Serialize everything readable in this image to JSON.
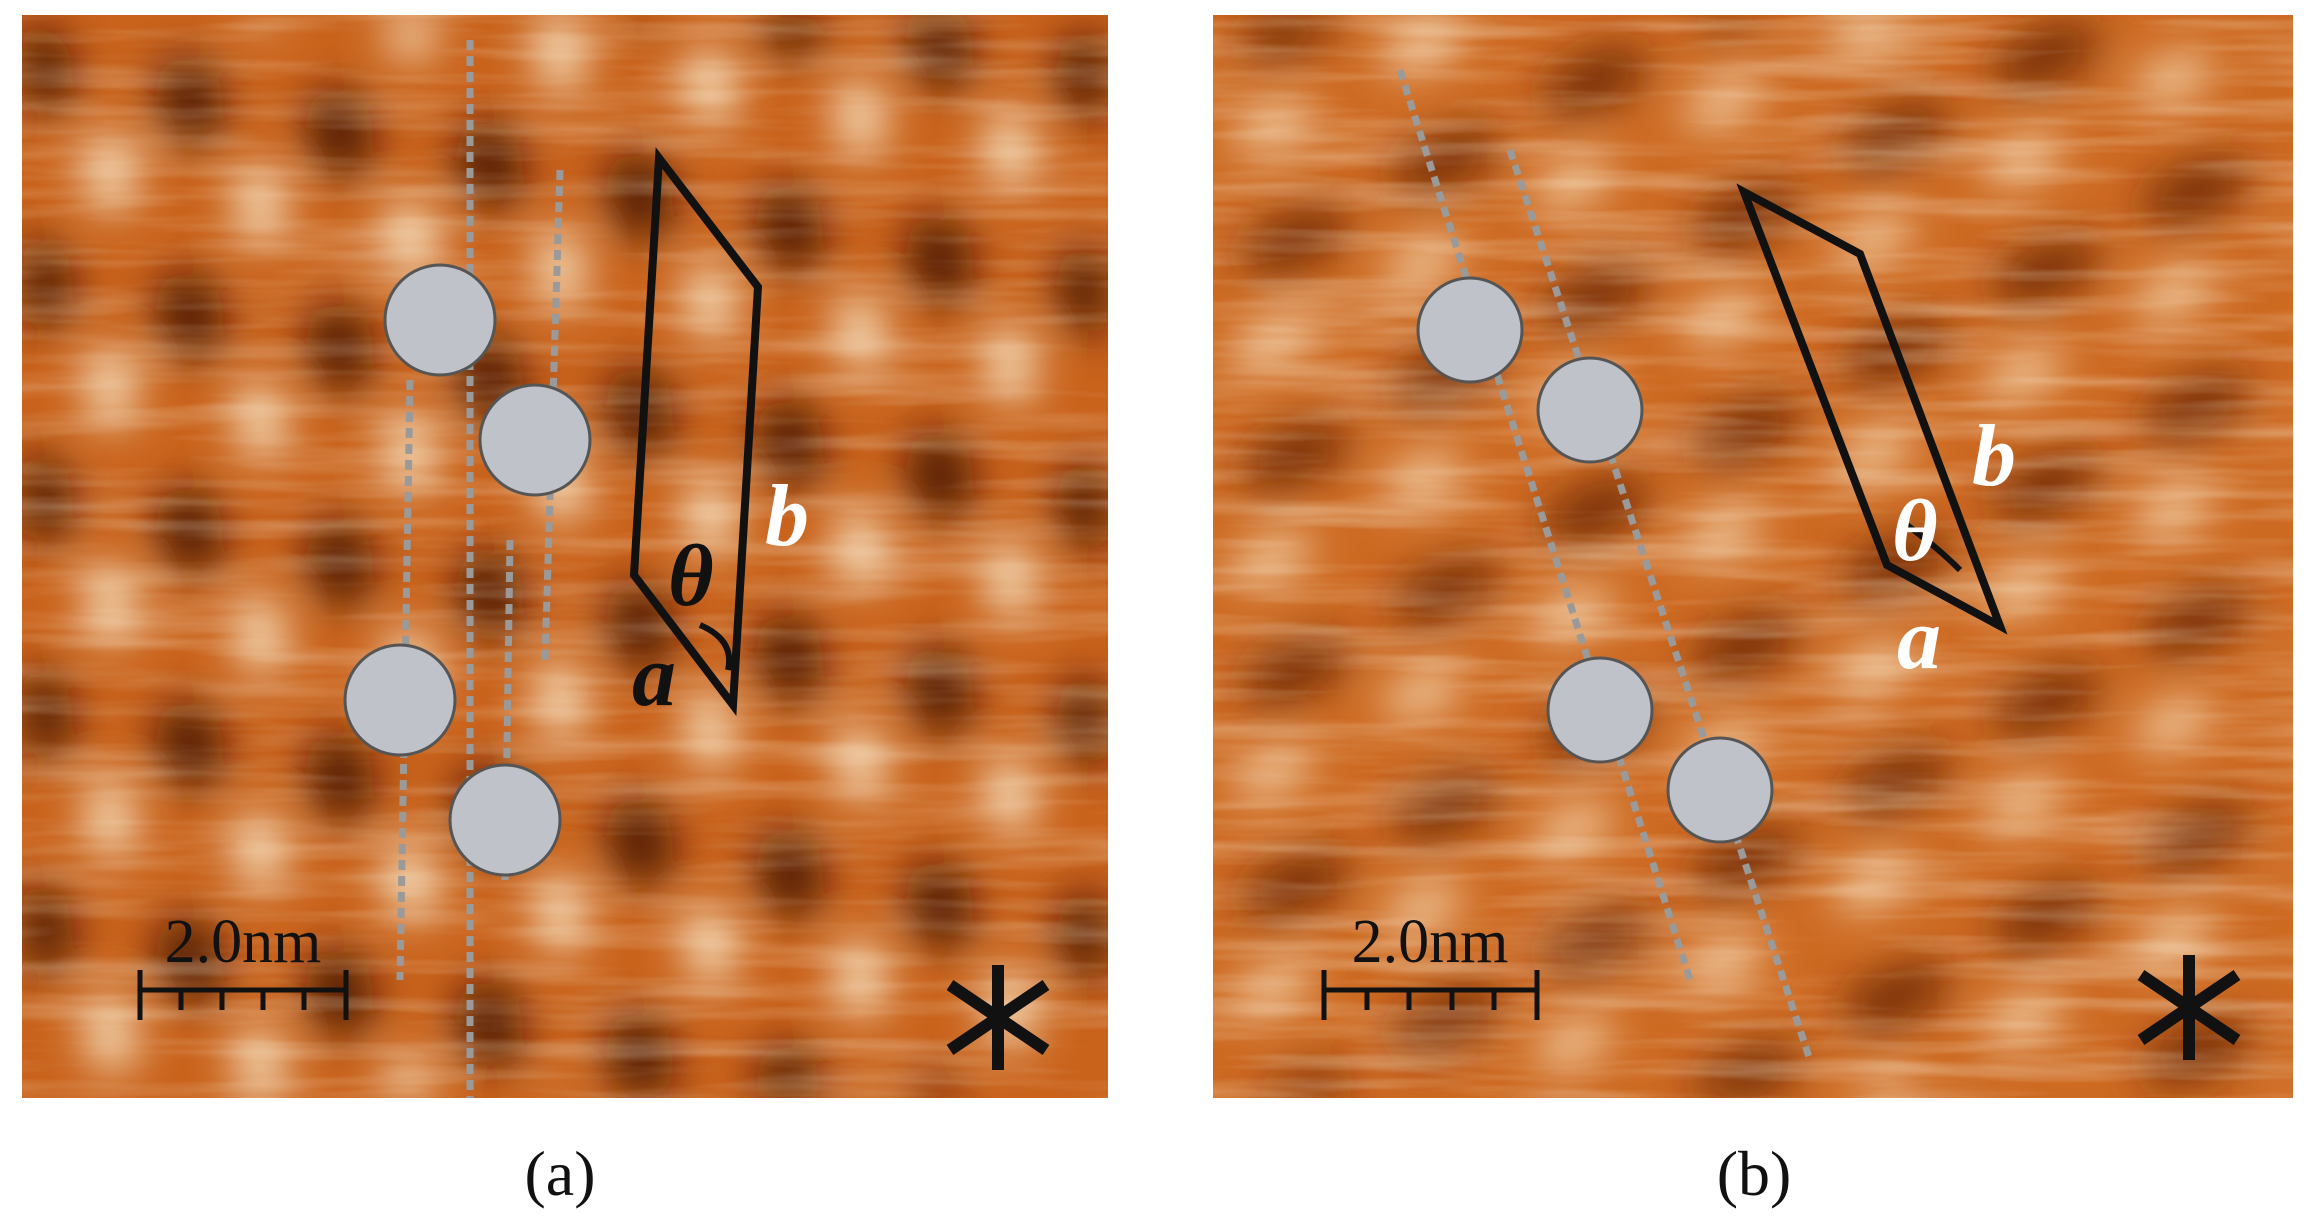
{
  "panels": [
    {
      "caption": "(a)",
      "scale_bar": "2.0nm",
      "lattice": {
        "a": "a",
        "b": "b",
        "angle": "θ"
      }
    },
    {
      "caption": "(b)",
      "scale_bar": "2.0nm",
      "lattice": {
        "a": "a",
        "b": "b",
        "angle": "θ"
      }
    }
  ]
}
